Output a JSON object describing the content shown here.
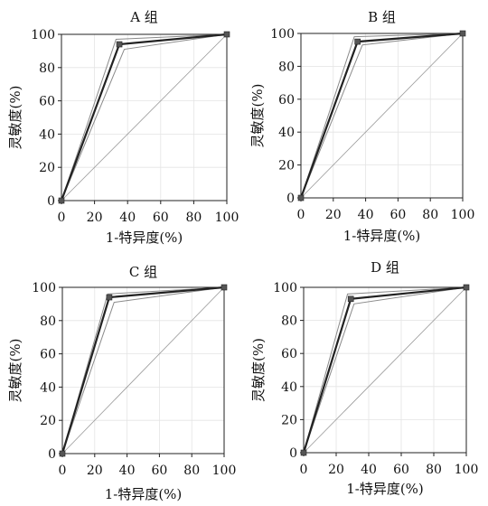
{
  "chart_data": [
    {
      "type": "line",
      "title": "A 组",
      "xlabel": "1-特异度(%)",
      "ylabel": "灵敏度(%)",
      "xlim": [
        0,
        100
      ],
      "ylim": [
        0,
        100
      ],
      "xticks": [
        0,
        20,
        40,
        60,
        80,
        100
      ],
      "yticks": [
        0,
        20,
        40,
        60,
        80,
        100
      ],
      "grid": true,
      "reference_line": {
        "x": [
          0,
          100
        ],
        "y": [
          0,
          100
        ]
      },
      "roc": {
        "x": [
          0,
          35,
          100
        ],
        "y": [
          0,
          94,
          100
        ]
      },
      "ci_upper": {
        "x": [
          0,
          33,
          100
        ],
        "y": [
          0,
          97,
          100
        ]
      },
      "ci_lower": {
        "x": [
          0,
          38,
          100
        ],
        "y": [
          0,
          91,
          100
        ]
      }
    },
    {
      "type": "line",
      "title": "B 组",
      "xlabel": "1-特异度(%)",
      "ylabel": "灵敏度(%)",
      "xlim": [
        0,
        100
      ],
      "ylim": [
        0,
        100
      ],
      "xticks": [
        0,
        20,
        40,
        60,
        80,
        100
      ],
      "yticks": [
        0,
        20,
        40,
        60,
        80,
        100
      ],
      "grid": true,
      "reference_line": {
        "x": [
          0,
          100
        ],
        "y": [
          0,
          100
        ]
      },
      "roc": {
        "x": [
          0,
          35,
          100
        ],
        "y": [
          0,
          95,
          100
        ]
      },
      "ci_upper": {
        "x": [
          0,
          33,
          100
        ],
        "y": [
          0,
          98,
          100
        ]
      },
      "ci_lower": {
        "x": [
          0,
          38,
          100
        ],
        "y": [
          0,
          93,
          100
        ]
      }
    },
    {
      "type": "line",
      "title": "C 组",
      "xlabel": "1-特异度(%)",
      "ylabel": "灵敏度(%)",
      "xlim": [
        0,
        100
      ],
      "ylim": [
        0,
        100
      ],
      "xticks": [
        0,
        20,
        40,
        60,
        80,
        100
      ],
      "yticks": [
        0,
        20,
        40,
        60,
        80,
        100
      ],
      "grid": true,
      "reference_line": {
        "x": [
          0,
          100
        ],
        "y": [
          0,
          100
        ]
      },
      "roc": {
        "x": [
          0,
          29,
          100
        ],
        "y": [
          0,
          94,
          100
        ]
      },
      "ci_upper": {
        "x": [
          0,
          28,
          100
        ],
        "y": [
          0,
          96,
          100
        ]
      },
      "ci_lower": {
        "x": [
          0,
          32,
          100
        ],
        "y": [
          0,
          91,
          100
        ]
      }
    },
    {
      "type": "line",
      "title": "D 组",
      "xlabel": "1-特异度(%)",
      "ylabel": "灵敏度(%)",
      "xlim": [
        0,
        100
      ],
      "ylim": [
        0,
        100
      ],
      "xticks": [
        0,
        20,
        40,
        60,
        80,
        100
      ],
      "yticks": [
        0,
        20,
        40,
        60,
        80,
        100
      ],
      "grid": true,
      "reference_line": {
        "x": [
          0,
          100
        ],
        "y": [
          0,
          100
        ]
      },
      "roc": {
        "x": [
          0,
          29,
          100
        ],
        "y": [
          0,
          93,
          100
        ]
      },
      "ci_upper": {
        "x": [
          0,
          27,
          100
        ],
        "y": [
          0,
          96,
          100
        ]
      },
      "ci_lower": {
        "x": [
          0,
          31,
          100
        ],
        "y": [
          0,
          90,
          100
        ]
      }
    }
  ]
}
